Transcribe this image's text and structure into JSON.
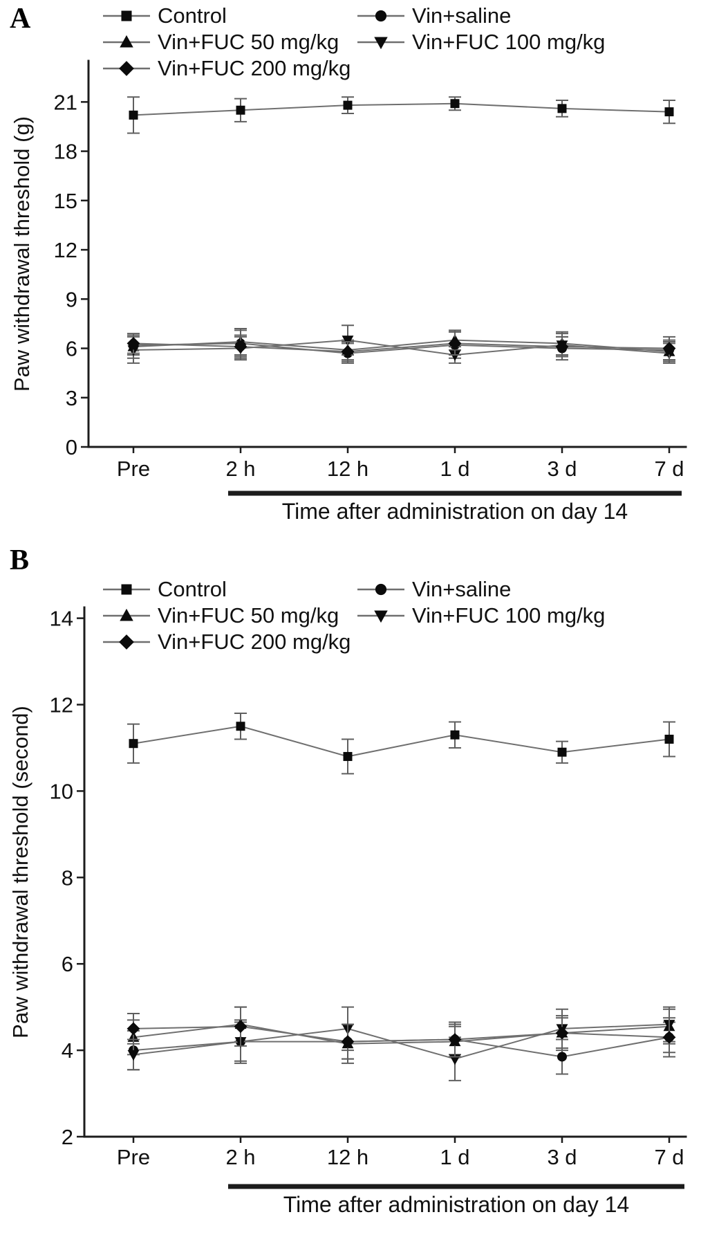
{
  "figure": {
    "background": "#ffffff",
    "colors": {
      "series_line": "#6f6f6f",
      "marker_fill": "#0b0b0b",
      "error_bar": "#5f5f5f",
      "axis": "#1c1c1c",
      "text": "#111111"
    }
  },
  "chart_data": [
    {
      "type": "line",
      "panel_label": "A",
      "ylabel": "Paw withdrawal threshold (g)",
      "xlabel": "Time after administration on day 14",
      "categories": [
        "Pre",
        "2 h",
        "12 h",
        "1 d",
        "3 d",
        "7 d"
      ],
      "ylim": [
        0,
        23.5
      ],
      "yticks": [
        0,
        3,
        6,
        9,
        12,
        15,
        18,
        21
      ],
      "grid": false,
      "legend_position": "top",
      "series": [
        {
          "name": "Control",
          "marker": "square",
          "values": [
            20.2,
            20.5,
            20.8,
            20.9,
            20.6,
            20.4
          ],
          "errors": [
            1.1,
            0.7,
            0.5,
            0.4,
            0.5,
            0.7
          ]
        },
        {
          "name": "Vin+saline",
          "marker": "circle",
          "values": [
            6.2,
            6.3,
            5.7,
            6.2,
            6.0,
            5.9
          ],
          "errors": [
            0.6,
            0.8,
            0.6,
            0.8,
            0.7,
            0.6
          ]
        },
        {
          "name": "Vin+FUC 50 mg/kg",
          "marker": "triangle-up",
          "values": [
            6.1,
            6.4,
            5.9,
            6.5,
            6.3,
            5.8
          ],
          "errors": [
            0.7,
            0.8,
            0.6,
            0.6,
            0.7,
            0.6
          ]
        },
        {
          "name": "Vin+FUC 100 mg/kg",
          "marker": "triangle-down",
          "values": [
            5.9,
            6.0,
            6.5,
            5.6,
            6.2,
            5.7
          ],
          "errors": [
            0.8,
            0.7,
            0.9,
            0.5,
            0.7,
            0.6
          ]
        },
        {
          "name": "Vin+FUC 200 mg/kg",
          "marker": "diamond",
          "values": [
            6.3,
            6.1,
            5.8,
            6.3,
            6.1,
            6.0
          ],
          "errors": [
            0.6,
            0.7,
            0.6,
            0.7,
            0.6,
            0.7
          ]
        }
      ]
    },
    {
      "type": "line",
      "panel_label": "B",
      "ylabel": "Paw withdrawal threshold (second)",
      "xlabel": "Time after administration on day 14",
      "categories": [
        "Pre",
        "2 h",
        "12 h",
        "1 d",
        "3 d",
        "7 d"
      ],
      "ylim": [
        2,
        14.25
      ],
      "yticks": [
        2,
        4,
        6,
        8,
        10,
        12,
        14
      ],
      "grid": false,
      "legend_position": "top",
      "series": [
        {
          "name": "Control",
          "marker": "square",
          "values": [
            11.1,
            11.5,
            10.8,
            11.3,
            10.9,
            11.2
          ],
          "errors": [
            0.45,
            0.3,
            0.4,
            0.3,
            0.25,
            0.4
          ]
        },
        {
          "name": "Vin+saline",
          "marker": "circle",
          "values": [
            4.0,
            4.2,
            4.2,
            4.25,
            3.85,
            4.3
          ],
          "errors": [
            0.45,
            0.5,
            0.4,
            0.35,
            0.4,
            0.35
          ]
        },
        {
          "name": "Vin+FUC 50 mg/kg",
          "marker": "triangle-up",
          "values": [
            4.3,
            4.6,
            4.15,
            4.2,
            4.4,
            4.55
          ],
          "errors": [
            0.4,
            0.4,
            0.45,
            0.35,
            0.4,
            0.4
          ]
        },
        {
          "name": "Vin+FUC 100 mg/kg",
          "marker": "triangle-down",
          "values": [
            3.9,
            4.2,
            4.5,
            3.8,
            4.5,
            4.6
          ],
          "errors": [
            0.35,
            0.45,
            0.5,
            0.5,
            0.45,
            0.4
          ]
        },
        {
          "name": "Vin+FUC 200 mg/kg",
          "marker": "diamond",
          "values": [
            4.5,
            4.55,
            4.2,
            4.25,
            4.4,
            4.3
          ],
          "errors": [
            0.35,
            0.45,
            0.4,
            0.4,
            0.35,
            0.45
          ]
        }
      ]
    }
  ]
}
